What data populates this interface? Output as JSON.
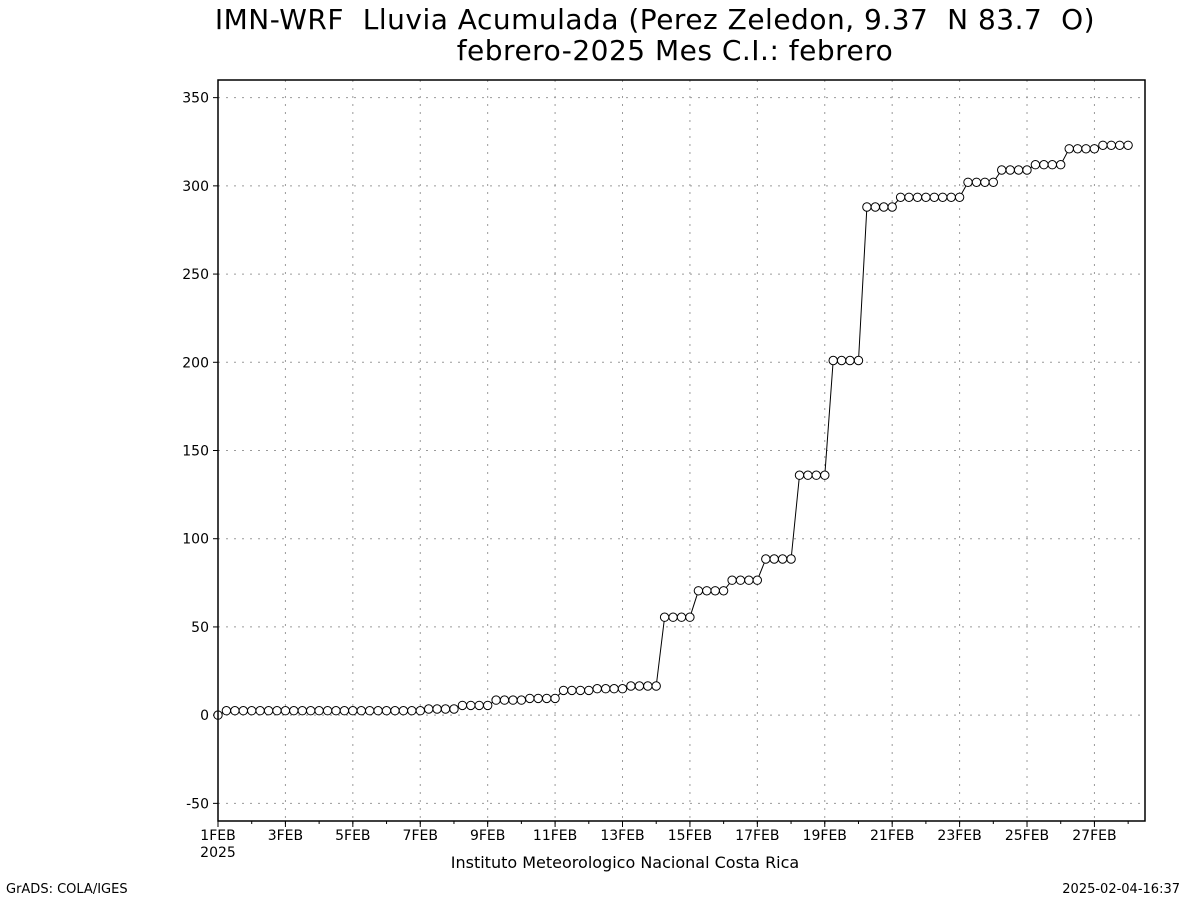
{
  "title": {
    "line1": "IMN-WRF  Lluvia Acumulada (Perez Zeledon, 9.37  N 83.7  O)",
    "line2": "febrero-2025 Mes C.I.: febrero"
  },
  "credit": "Instituto Meteorologico Nacional Costa Rica",
  "footer": {
    "left": "GrADS: COLA/IGES",
    "right": "2025-02-04-16:37"
  },
  "chart_data": {
    "type": "line",
    "title": "IMN-WRF  Lluvia Acumulada (Perez Zeledon, 9.37  N 83.7  O)",
    "subtitle": "febrero-2025 Mes C.I.: febrero",
    "xlabel": "",
    "ylabel": "",
    "x_unit": "day of February 2025 (1 = 1FEB 00Z)",
    "xlim": [
      1,
      28.5
    ],
    "ylim": [
      -60,
      360
    ],
    "yticks": [
      -50,
      0,
      50,
      100,
      150,
      200,
      250,
      300,
      350
    ],
    "xticks": [
      {
        "value": 1,
        "label": "1FEB",
        "sublabel": "2025"
      },
      {
        "value": 3,
        "label": "3FEB"
      },
      {
        "value": 5,
        "label": "5FEB"
      },
      {
        "value": 7,
        "label": "7FEB"
      },
      {
        "value": 9,
        "label": "9FEB"
      },
      {
        "value": 11,
        "label": "11FEB"
      },
      {
        "value": 13,
        "label": "13FEB"
      },
      {
        "value": 15,
        "label": "15FEB"
      },
      {
        "value": 17,
        "label": "17FEB"
      },
      {
        "value": 19,
        "label": "19FEB"
      },
      {
        "value": 21,
        "label": "21FEB"
      },
      {
        "value": 23,
        "label": "23FEB"
      },
      {
        "value": 25,
        "label": "25FEB"
      },
      {
        "value": 27,
        "label": "27FEB"
      }
    ],
    "grid": true,
    "marker": "open-circle",
    "line_color": "#000000",
    "series": [
      {
        "x_start": 1,
        "x_step": 0.25,
        "values": [
          0,
          2.5,
          2.5,
          2.5,
          2.5,
          2.5,
          2.5,
          2.5,
          2.5,
          2.5,
          2.5,
          2.5,
          2.5,
          2.5,
          2.5,
          2.5,
          2.5,
          2.5,
          2.5,
          2.5,
          2.5,
          2.5,
          2.5,
          2.5,
          2.5,
          3.5,
          3.5,
          3.5,
          3.5,
          5.5,
          5.5,
          5.5,
          5.5,
          8.5,
          8.5,
          8.5,
          8.5,
          9.5,
          9.5,
          9.5,
          9.5,
          14,
          14,
          14,
          14,
          15,
          15,
          15,
          15,
          16.5,
          16.5,
          16.5,
          16.5,
          55.5,
          55.5,
          55.5,
          55.5,
          70.5,
          70.5,
          70.5,
          70.5,
          76.5,
          76.5,
          76.5,
          76.5,
          88.5,
          88.5,
          88.5,
          88.5,
          136,
          136,
          136,
          136,
          201,
          201,
          201,
          201,
          288,
          288,
          288,
          288,
          293.5,
          293.5,
          293.5,
          293.5,
          293.5,
          293.5,
          293.5,
          293.5,
          302,
          302,
          302,
          302,
          309,
          309,
          309,
          309,
          312,
          312,
          312,
          312,
          321,
          321,
          321,
          321,
          323,
          323,
          323,
          323
        ]
      }
    ]
  }
}
